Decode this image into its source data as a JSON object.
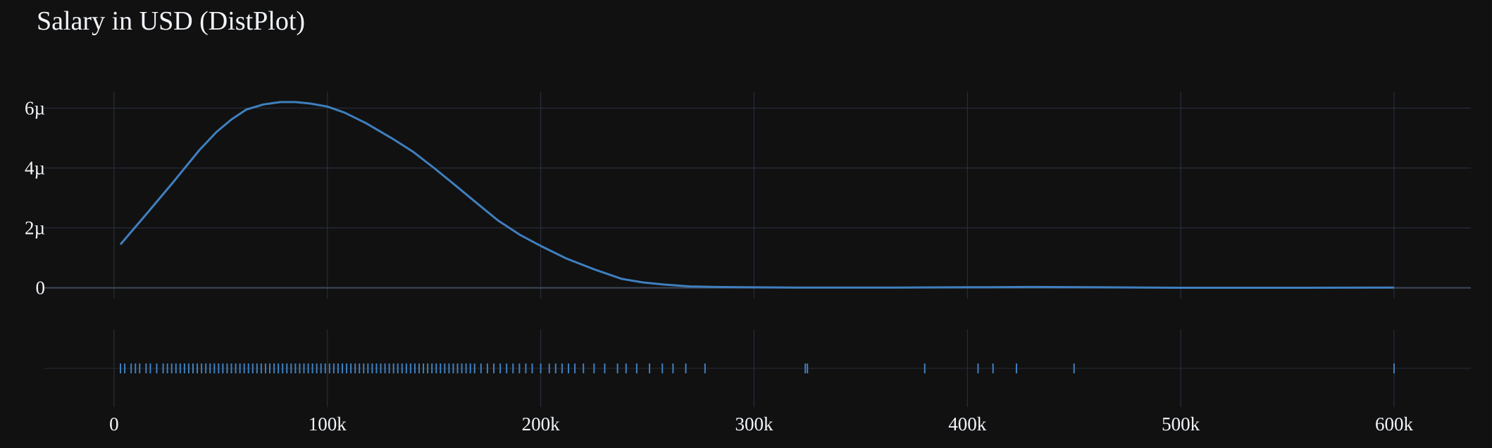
{
  "chart_data": {
    "type": "line",
    "title": "Salary in USD (DistPlot)",
    "xlabel": "",
    "ylabel": "",
    "xlim": [
      -33000,
      636000
    ],
    "ylim": [
      -3.6e-07,
      6.55e-06
    ],
    "x_ticks": [
      {
        "value": 0,
        "label": "0"
      },
      {
        "value": 100000,
        "label": "100k"
      },
      {
        "value": 200000,
        "label": "200k"
      },
      {
        "value": 300000,
        "label": "300k"
      },
      {
        "value": 400000,
        "label": "400k"
      },
      {
        "value": 500000,
        "label": "500k"
      },
      {
        "value": 600000,
        "label": "600k"
      }
    ],
    "y_ticks": [
      {
        "value": 0,
        "label": "0"
      },
      {
        "value": 2e-06,
        "label": "2µ"
      },
      {
        "value": 4e-06,
        "label": "4µ"
      },
      {
        "value": 6e-06,
        "label": "6µ"
      }
    ],
    "grid": true,
    "legend": "none",
    "line_color": "#3f7fbf",
    "series": [
      {
        "type": "kde",
        "x": [
          3000,
          15000,
          28000,
          40000,
          48000,
          55000,
          62000,
          70000,
          78000,
          85000,
          92000,
          100000,
          108000,
          118000,
          130000,
          140000,
          150000,
          160000,
          170000,
          180000,
          190000,
          200000,
          212000,
          225000,
          238000,
          248000,
          258000,
          270000,
          282000,
          295000,
          320000,
          365000,
          400000,
          430000,
          460000,
          500000,
          560000,
          600000
        ],
        "y": [
          1.45e-06,
          2.45e-06,
          3.55e-06,
          4.6e-06,
          5.2e-06,
          5.62e-06,
          5.95e-06,
          6.12e-06,
          6.2e-06,
          6.2e-06,
          6.15e-06,
          6.05e-06,
          5.85e-06,
          5.5e-06,
          5e-06,
          4.55e-06,
          4e-06,
          3.42e-06,
          2.83e-06,
          2.25e-06,
          1.78e-06,
          1.4e-06,
          9.8e-07,
          6.2e-07,
          3e-07,
          1.8e-07,
          1.1e-07,
          5e-08,
          3e-08,
          2e-08,
          1e-08,
          1e-08,
          2e-08,
          3e-08,
          2e-08,
          5e-09,
          5e-09,
          1e-08
        ]
      }
    ],
    "rug": [
      3000,
      5000,
      8000,
      10000,
      12000,
      15000,
      17000,
      20000,
      23000,
      25000,
      27000,
      29000,
      31000,
      33000,
      35000,
      37000,
      39000,
      41000,
      43000,
      45000,
      47000,
      49000,
      51000,
      53000,
      55000,
      57000,
      59000,
      61000,
      63000,
      65000,
      67000,
      69000,
      71000,
      73000,
      75000,
      77000,
      79000,
      81000,
      83000,
      85000,
      87000,
      89000,
      91000,
      93000,
      95000,
      97000,
      99000,
      101000,
      103000,
      105000,
      107000,
      109000,
      111000,
      113000,
      115000,
      117000,
      119000,
      121000,
      123000,
      125000,
      127000,
      129000,
      131000,
      133000,
      135000,
      137000,
      139000,
      141000,
      143000,
      145000,
      147000,
      149000,
      151000,
      153000,
      155000,
      157000,
      159000,
      161000,
      163000,
      165000,
      167000,
      169000,
      172000,
      175000,
      178000,
      181000,
      184000,
      187000,
      190000,
      193000,
      196000,
      200000,
      204000,
      207000,
      210000,
      213000,
      216000,
      220000,
      225000,
      230000,
      236000,
      240000,
      245000,
      251000,
      257000,
      262000,
      268000,
      277000,
      324000,
      325000,
      380000,
      405000,
      412000,
      423000,
      450000,
      600000
    ]
  }
}
